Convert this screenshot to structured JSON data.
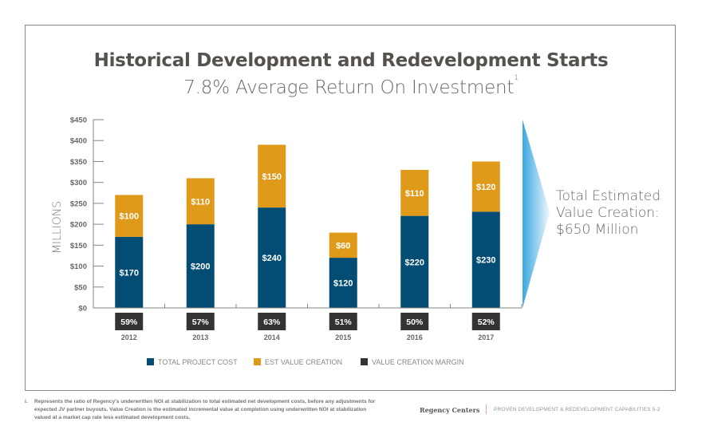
{
  "page": {
    "title": "Historical Development and Redevelopment Starts",
    "subtitle": "7.8% Average Return On Investment",
    "subtitle_footnote_mark": "1",
    "callout_lines": [
      "Total Estimated",
      "Value Creation:",
      "$650 Million"
    ],
    "footnote_marker": "i.",
    "footnote_text": "Represents the ratio of Regency's underwritten NOI at stabilization to total estimated net development costs, before any adjustments for expected JV partner buyouts. Value Creation is the estimated incremental value at completion using underwritten NOI at stabilization valued at a market cap rate less estimated development costs.",
    "brand": "Regency Centers",
    "section": "PROVEN DEVELOPMENT & REDEVELOPMENT CAPABILITIES 5-2"
  },
  "colors": {
    "cost": "#034d74",
    "value": "#df9a1a",
    "margin": "#333333",
    "axis": "#8a8580",
    "arrow_start": "#3aa7e0",
    "arrow_end": "#eef7fd"
  },
  "chart_data": {
    "type": "bar",
    "stacked": true,
    "title": "Historical Development and Redevelopment Starts",
    "subtitle": "7.8% Average Return On Investment",
    "ylabel": "MILLIONS",
    "xlabel": "",
    "ylim": [
      0,
      450
    ],
    "yticks": [
      0,
      50,
      100,
      150,
      200,
      250,
      300,
      350,
      400,
      450
    ],
    "ytick_labels": [
      "$0",
      "$50",
      "$100",
      "$150",
      "$200",
      "$250",
      "$300",
      "$350",
      "$400",
      "$450"
    ],
    "grid": false,
    "legend_position": "bottom",
    "categories": [
      "2012",
      "2013",
      "2014",
      "2015",
      "2016",
      "2017"
    ],
    "series": [
      {
        "name": "TOTAL PROJECT COST",
        "values": [
          170,
          200,
          240,
          120,
          220,
          230
        ],
        "labels": [
          "$170",
          "$200",
          "$240",
          "$120",
          "$220",
          "$230"
        ]
      },
      {
        "name": "EST VALUE CREATION",
        "values": [
          100,
          110,
          150,
          60,
          110,
          120
        ],
        "labels": [
          "$100",
          "$110",
          "$150",
          "$60",
          "$110",
          "$120"
        ]
      }
    ],
    "margin_series": {
      "name": "VALUE CREATION MARGIN",
      "values": [
        59,
        57,
        63,
        51,
        50,
        52
      ],
      "labels": [
        "59%",
        "57%",
        "63%",
        "51%",
        "50%",
        "52%"
      ]
    },
    "legend": [
      "TOTAL PROJECT COST",
      "EST VALUE CREATION",
      "VALUE CREATION MARGIN"
    ]
  }
}
